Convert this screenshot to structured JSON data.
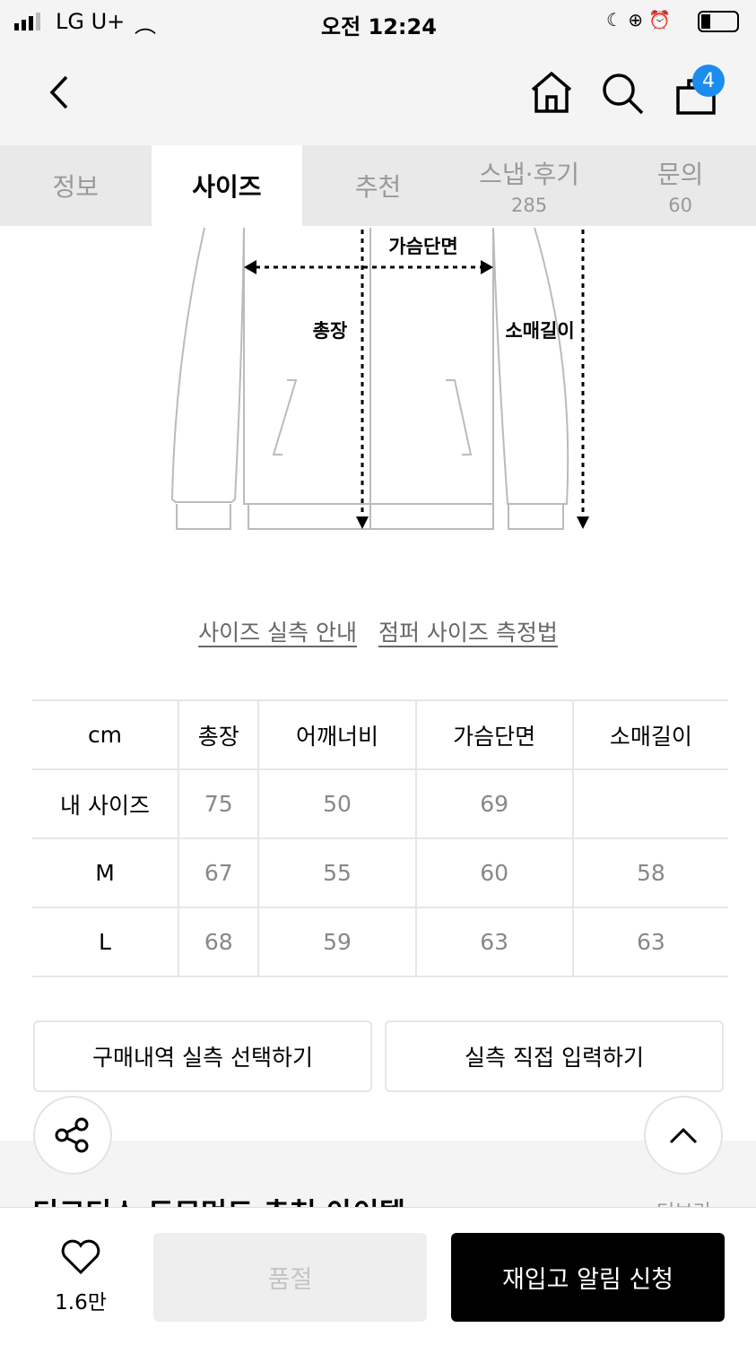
{
  "status_bar": {
    "carrier": "LG U+",
    "time": "오전 12:24"
  },
  "nav": {
    "cart_count": "4"
  },
  "tabs": [
    {
      "label": "정보"
    },
    {
      "label": "사이즈",
      "active": true
    },
    {
      "label": "추천"
    },
    {
      "label": "스냅·후기",
      "count": "285"
    },
    {
      "label": "문의",
      "count": "60"
    }
  ],
  "diagram": {
    "chest": "가슴단면",
    "length": "총장",
    "sleeve": "소매길이"
  },
  "links": {
    "guide": "사이즈 실측 안내",
    "method": "점퍼 사이즈 측정법"
  },
  "size_table": {
    "headers": [
      "cm",
      "총장",
      "어깨너비",
      "가슴단면",
      "소매길이"
    ],
    "rows": [
      [
        "내 사이즈",
        "75",
        "50",
        "69",
        ""
      ],
      [
        "M",
        "67",
        "55",
        "60",
        "58"
      ],
      [
        "L",
        "68",
        "59",
        "63",
        "63"
      ]
    ]
  },
  "buttons": {
    "purchase_history": "구매내역 실측 선택하기",
    "direct_input": "실측 직접 입력하기"
  },
  "recommend": {
    "title": "디코디스 도모먼드 추천 아이템",
    "more": "더보기"
  },
  "bottom": {
    "likes": "1.6만",
    "soldout": "품절",
    "restock": "재입고 알림 신청"
  }
}
